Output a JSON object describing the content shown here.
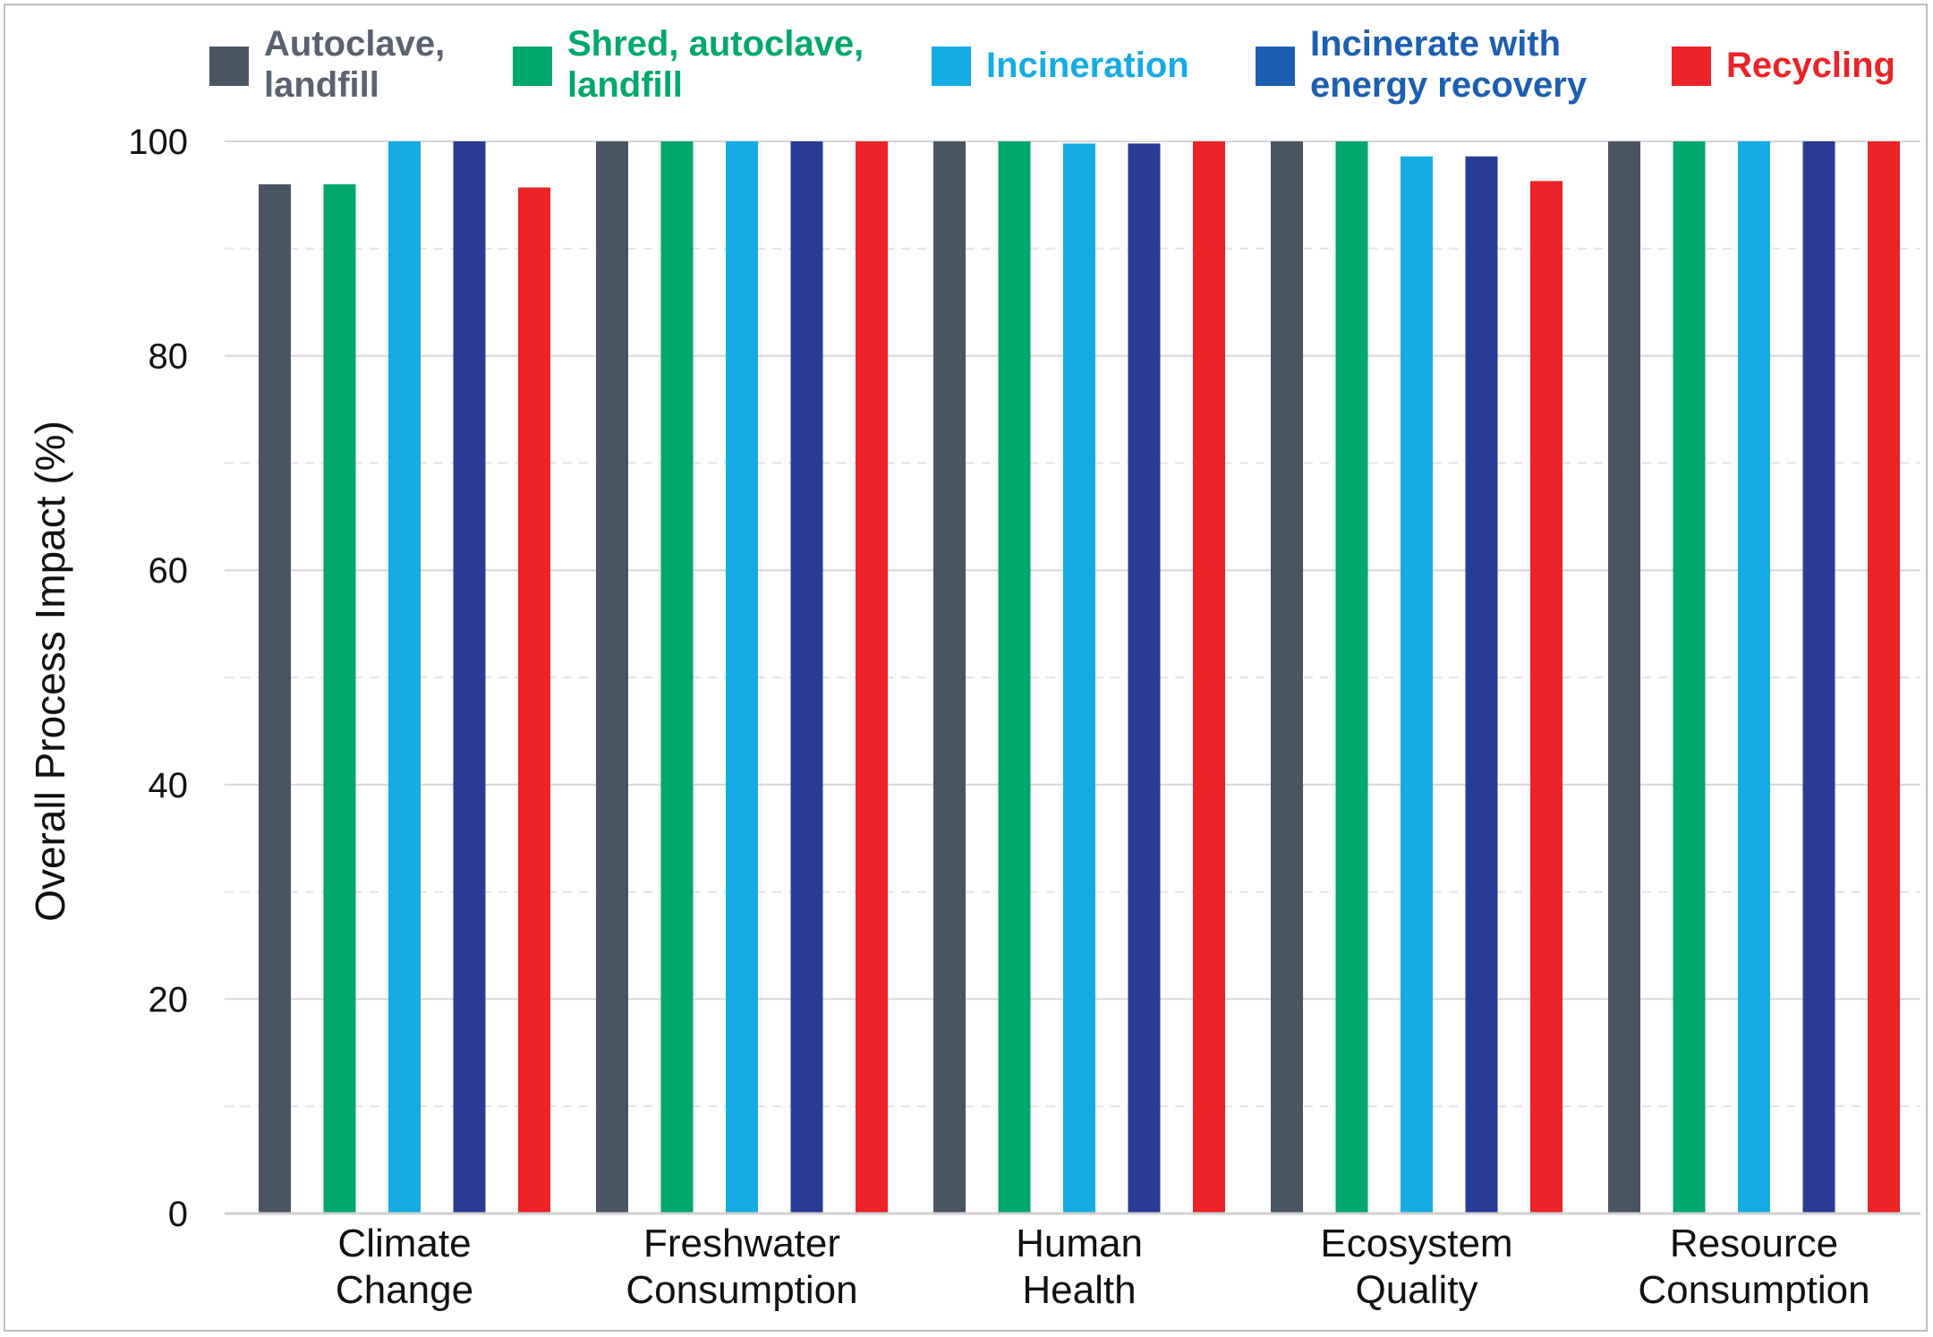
{
  "chart_data": {
    "type": "bar",
    "title": "",
    "xlabel": "",
    "ylabel": "Overall Process Impact (%)",
    "ylim": [
      0,
      100
    ],
    "yticks": [
      0,
      20,
      40,
      60,
      80,
      100
    ],
    "grid": true,
    "legend_position": "top",
    "categories": [
      [
        "Climate",
        "Change"
      ],
      [
        "Freshwater",
        "Consumption"
      ],
      [
        "Human",
        "Health"
      ],
      [
        "Ecosystem",
        "Quality"
      ],
      [
        "Resource",
        "Consumption"
      ]
    ],
    "series": [
      {
        "name": [
          "Autoclave,",
          "landfill"
        ],
        "color": "#4a5563",
        "text_color": "#5a6270",
        "values": [
          96,
          100,
          100,
          100,
          100
        ]
      },
      {
        "name": [
          "Shred, autoclave,",
          "landfill"
        ],
        "color": "#00a86b",
        "text_color": "#00a86b",
        "values": [
          96,
          100,
          100,
          100,
          100
        ]
      },
      {
        "name": [
          "Incineration"
        ],
        "color": "#15ace3",
        "text_color": "#15ace3",
        "values": [
          100,
          100,
          99.8,
          98.6,
          100
        ]
      },
      {
        "name": [
          "Incinerate with",
          "energy recovery"
        ],
        "color": "#283c96",
        "text_color": "#1c5fb0",
        "legend_swatch_color": "#1c5fb0",
        "values": [
          100,
          100,
          99.8,
          98.6,
          100
        ]
      },
      {
        "name": [
          "Recycling"
        ],
        "color": "#ec2327",
        "text_color": "#ec2327",
        "values": [
          95.7,
          100,
          100,
          96.3,
          100
        ]
      }
    ]
  }
}
